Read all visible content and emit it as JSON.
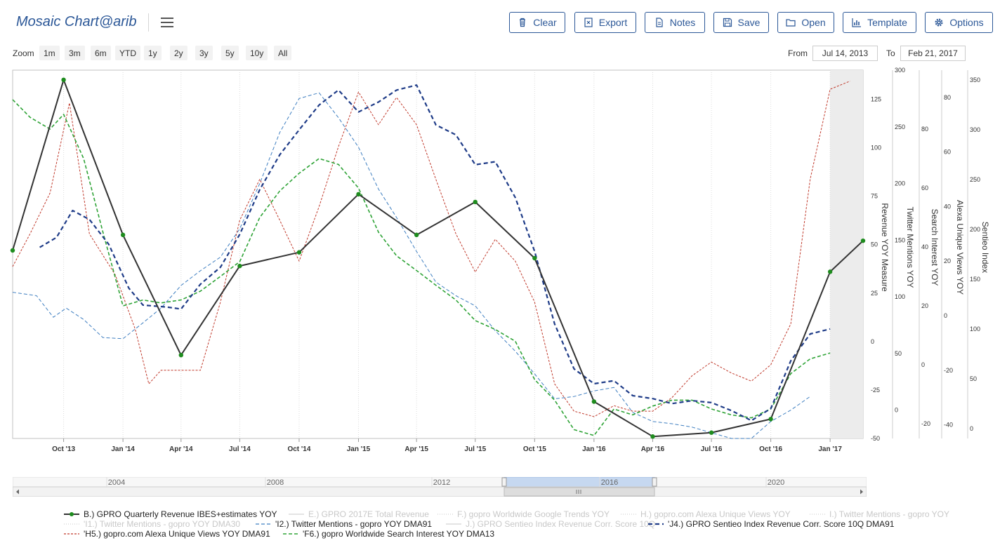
{
  "app": {
    "title": "Mosaic Chart@arib"
  },
  "toolbar": [
    {
      "label": "Clear",
      "icon": "trash-icon"
    },
    {
      "label": "Export",
      "icon": "export-icon"
    },
    {
      "label": "Notes",
      "icon": "notes-icon"
    },
    {
      "label": "Save",
      "icon": "save-icon"
    },
    {
      "label": "Open",
      "icon": "folder-icon"
    },
    {
      "label": "Template",
      "icon": "bar-chart-icon"
    },
    {
      "label": "Options",
      "icon": "gear-icon"
    }
  ],
  "zoom": {
    "label": "Zoom",
    "buttons": [
      "1m",
      "3m",
      "6m",
      "YTD",
      "1y",
      "2y",
      "3y",
      "5y",
      "10y",
      "All"
    ]
  },
  "range": {
    "from_label": "From",
    "from_value": "Jul 14, 2013",
    "to_label": "To",
    "to_value": "Feb 21, 2017"
  },
  "colors": {
    "accent": "#2b5797",
    "black_series": "#333333",
    "navy_series": "#1f3c88",
    "blue_series": "#3f7fc1",
    "red_series": "#c0392b",
    "green_series": "#2ea336",
    "marker": "#1e8c1e"
  },
  "chart_data": {
    "type": "line",
    "x_range": [
      "2013-07-14",
      "2017-02-21"
    ],
    "x_ticks": [
      "Oct '13",
      "Jan '14",
      "Apr '14",
      "Jul '14",
      "Oct '14",
      "Jan '15",
      "Apr '15",
      "Jul '15",
      "Oct '15",
      "Jan '16",
      "Apr '16",
      "Jul '16",
      "Oct '16",
      "Jan '17"
    ],
    "grid": true,
    "axes": [
      {
        "label": "Revenue YOY Measure",
        "ylim": [
          -50,
          140
        ],
        "ticks": [
          125,
          100,
          75,
          50,
          25,
          0,
          -25,
          -50
        ]
      },
      {
        "label": "Twitter Mentions YOY",
        "ylim": [
          -25,
          300
        ],
        "ticks": [
          300,
          250,
          200,
          150,
          100,
          50,
          0
        ]
      },
      {
        "label": "Search Interest YOY",
        "ylim": [
          -25,
          100
        ],
        "ticks": [
          80,
          60,
          40,
          20,
          0,
          -20
        ]
      },
      {
        "label": "Alexa Unique Views YOY",
        "ylim": [
          -45,
          90
        ],
        "ticks": [
          80,
          60,
          40,
          20,
          0,
          -20,
          -40
        ]
      },
      {
        "label": "Sentieo Index",
        "ylim": [
          -10,
          360
        ],
        "ticks": [
          350,
          300,
          250,
          200,
          150,
          100,
          50,
          0
        ]
      }
    ],
    "series": [
      {
        "name": "B.) GPRO Quarterly Revenue IBES+estimates YOY",
        "axis": 0,
        "style": "solid-markers",
        "points": [
          [
            "2013-07-14",
            47
          ],
          [
            "2013-10-01",
            135
          ],
          [
            "2014-01-01",
            55
          ],
          [
            "2014-04-01",
            -7
          ],
          [
            "2014-07-01",
            39
          ],
          [
            "2014-10-01",
            46
          ],
          [
            "2015-01-01",
            76
          ],
          [
            "2015-04-01",
            55
          ],
          [
            "2015-07-01",
            72
          ],
          [
            "2015-10-01",
            43
          ],
          [
            "2016-01-01",
            -31
          ],
          [
            "2016-04-01",
            -49
          ],
          [
            "2016-07-01",
            -47
          ],
          [
            "2016-10-01",
            -40
          ],
          [
            "2017-01-01",
            36
          ],
          [
            "2017-02-21",
            52
          ]
        ]
      },
      {
        "name": "'J4.) GPRO Sentieo Index Revenue Corr. Score 10Q DMA91",
        "axis": 4,
        "style": "dash-heavy",
        "points": [
          [
            "2013-08-25",
            182
          ],
          [
            "2013-09-20",
            192
          ],
          [
            "2013-10-15",
            219
          ],
          [
            "2013-11-10",
            210
          ],
          [
            "2013-12-10",
            185
          ],
          [
            "2014-01-10",
            141
          ],
          [
            "2014-02-01",
            124
          ],
          [
            "2014-03-10",
            122
          ],
          [
            "2014-04-01",
            120
          ],
          [
            "2014-05-01",
            145
          ],
          [
            "2014-06-01",
            162
          ],
          [
            "2014-07-01",
            195
          ],
          [
            "2014-08-01",
            240
          ],
          [
            "2014-09-01",
            275
          ],
          [
            "2014-10-01",
            300
          ],
          [
            "2014-11-01",
            325
          ],
          [
            "2014-12-01",
            340
          ],
          [
            "2015-01-01",
            318
          ],
          [
            "2015-02-01",
            328
          ],
          [
            "2015-03-01",
            340
          ],
          [
            "2015-04-01",
            345
          ],
          [
            "2015-05-01",
            305
          ],
          [
            "2015-06-01",
            295
          ],
          [
            "2015-07-01",
            265
          ],
          [
            "2015-08-01",
            268
          ],
          [
            "2015-09-01",
            232
          ],
          [
            "2015-10-01",
            178
          ],
          [
            "2015-11-01",
            105
          ],
          [
            "2015-12-01",
            60
          ],
          [
            "2016-01-01",
            45
          ],
          [
            "2016-02-01",
            48
          ],
          [
            "2016-03-01",
            33
          ],
          [
            "2016-04-01",
            30
          ],
          [
            "2016-05-01",
            25
          ],
          [
            "2016-06-01",
            28
          ],
          [
            "2016-07-01",
            26
          ],
          [
            "2016-08-01",
            18
          ],
          [
            "2016-09-01",
            8
          ],
          [
            "2016-10-01",
            20
          ],
          [
            "2016-11-01",
            68
          ],
          [
            "2016-12-01",
            95
          ],
          [
            "2017-01-01",
            100
          ]
        ]
      },
      {
        "name": "'I2.) Twitter Mentions - gopro YOY DMA91",
        "axis": 1,
        "style": "dash-light",
        "points": [
          [
            "2013-07-14",
            104
          ],
          [
            "2013-08-20",
            101
          ],
          [
            "2013-09-15",
            82
          ],
          [
            "2013-10-05",
            90
          ],
          [
            "2013-11-01",
            80
          ],
          [
            "2013-12-01",
            64
          ],
          [
            "2014-01-01",
            63
          ],
          [
            "2014-02-01",
            77
          ],
          [
            "2014-03-01",
            90
          ],
          [
            "2014-04-01",
            110
          ],
          [
            "2014-05-01",
            123
          ],
          [
            "2014-06-01",
            135
          ],
          [
            "2014-07-01",
            160
          ],
          [
            "2014-08-01",
            200
          ],
          [
            "2014-09-01",
            245
          ],
          [
            "2014-10-01",
            275
          ],
          [
            "2014-11-01",
            280
          ],
          [
            "2014-12-01",
            258
          ],
          [
            "2015-01-01",
            232
          ],
          [
            "2015-02-01",
            195
          ],
          [
            "2015-03-01",
            170
          ],
          [
            "2015-04-01",
            140
          ],
          [
            "2015-05-01",
            113
          ],
          [
            "2015-06-01",
            101
          ],
          [
            "2015-07-01",
            92
          ],
          [
            "2015-08-01",
            70
          ],
          [
            "2015-09-01",
            52
          ],
          [
            "2015-10-01",
            32
          ],
          [
            "2015-11-01",
            10
          ],
          [
            "2015-12-01",
            12
          ],
          [
            "2016-01-01",
            17
          ],
          [
            "2016-02-01",
            20
          ],
          [
            "2016-03-01",
            -2
          ],
          [
            "2016-04-01",
            -10
          ],
          [
            "2016-05-01",
            -12
          ],
          [
            "2016-06-01",
            -15
          ],
          [
            "2016-07-01",
            -20
          ],
          [
            "2016-08-01",
            -25
          ],
          [
            "2016-09-01",
            -25
          ],
          [
            "2016-10-01",
            -10
          ],
          [
            "2016-11-01",
            0
          ],
          [
            "2016-12-01",
            12
          ]
        ]
      },
      {
        "name": "'H5.) gopro.com Alexa Unique Views YOY DMA91",
        "axis": 3,
        "style": "dash-fine",
        "points": [
          [
            "2013-07-14",
            18
          ],
          [
            "2013-08-10",
            30
          ],
          [
            "2013-09-10",
            45
          ],
          [
            "2013-10-10",
            78
          ],
          [
            "2013-11-10",
            30
          ],
          [
            "2013-12-20",
            15
          ],
          [
            "2014-01-20",
            -5
          ],
          [
            "2014-02-10",
            -25
          ],
          [
            "2014-03-01",
            -20
          ],
          [
            "2014-04-01",
            -20
          ],
          [
            "2014-05-01",
            -20
          ],
          [
            "2014-06-01",
            5
          ],
          [
            "2014-07-01",
            35
          ],
          [
            "2014-08-01",
            50
          ],
          [
            "2014-09-01",
            35
          ],
          [
            "2014-10-01",
            20
          ],
          [
            "2014-11-01",
            40
          ],
          [
            "2014-12-01",
            62
          ],
          [
            "2015-01-01",
            82
          ],
          [
            "2015-02-01",
            70
          ],
          [
            "2015-03-01",
            80
          ],
          [
            "2015-04-01",
            70
          ],
          [
            "2015-05-01",
            50
          ],
          [
            "2015-06-01",
            30
          ],
          [
            "2015-07-01",
            16
          ],
          [
            "2015-08-01",
            28
          ],
          [
            "2015-09-01",
            20
          ],
          [
            "2015-10-01",
            5
          ],
          [
            "2015-11-01",
            -25
          ],
          [
            "2015-12-01",
            -35
          ],
          [
            "2016-01-01",
            -37
          ],
          [
            "2016-02-01",
            -33
          ],
          [
            "2016-03-01",
            -35
          ],
          [
            "2016-04-01",
            -35
          ],
          [
            "2016-05-01",
            -30
          ],
          [
            "2016-06-01",
            -22
          ],
          [
            "2016-07-01",
            -17
          ],
          [
            "2016-08-01",
            -21
          ],
          [
            "2016-09-01",
            -24
          ],
          [
            "2016-10-01",
            -18
          ],
          [
            "2016-11-01",
            -3
          ],
          [
            "2016-12-01",
            50
          ],
          [
            "2017-01-01",
            83
          ],
          [
            "2017-02-01",
            86
          ]
        ]
      },
      {
        "name": "'F6.) gopro Worldwide Search Interest YOY DMA13",
        "axis": 2,
        "style": "dash-medium",
        "points": [
          [
            "2013-07-14",
            90
          ],
          [
            "2013-08-10",
            84
          ],
          [
            "2013-09-10",
            80
          ],
          [
            "2013-10-01",
            85
          ],
          [
            "2013-11-01",
            70
          ],
          [
            "2013-12-01",
            45
          ],
          [
            "2014-01-01",
            20
          ],
          [
            "2014-02-01",
            22
          ],
          [
            "2014-03-01",
            21
          ],
          [
            "2014-04-01",
            22
          ],
          [
            "2014-05-01",
            25
          ],
          [
            "2014-06-01",
            30
          ],
          [
            "2014-07-01",
            35
          ],
          [
            "2014-08-01",
            50
          ],
          [
            "2014-09-01",
            59
          ],
          [
            "2014-10-01",
            65
          ],
          [
            "2014-11-01",
            70
          ],
          [
            "2014-12-01",
            68
          ],
          [
            "2015-01-01",
            60
          ],
          [
            "2015-02-01",
            45
          ],
          [
            "2015-03-01",
            37
          ],
          [
            "2015-04-01",
            32
          ],
          [
            "2015-05-01",
            27
          ],
          [
            "2015-06-01",
            22
          ],
          [
            "2015-07-01",
            15
          ],
          [
            "2015-08-01",
            12
          ],
          [
            "2015-09-01",
            8
          ],
          [
            "2015-10-01",
            -5
          ],
          [
            "2015-11-01",
            -12
          ],
          [
            "2015-12-01",
            -22
          ],
          [
            "2016-01-01",
            -24
          ],
          [
            "2016-02-01",
            -15
          ],
          [
            "2016-03-01",
            -17
          ],
          [
            "2016-04-01",
            -14
          ],
          [
            "2016-05-01",
            -12
          ],
          [
            "2016-06-01",
            -12
          ],
          [
            "2016-07-01",
            -15
          ],
          [
            "2016-08-01",
            -17
          ],
          [
            "2016-09-01",
            -18
          ],
          [
            "2016-10-01",
            -15
          ],
          [
            "2016-11-01",
            -3
          ],
          [
            "2016-12-01",
            2
          ],
          [
            "2017-01-01",
            4
          ]
        ]
      }
    ]
  },
  "navigator": {
    "ticks": [
      "2004",
      "2008",
      "2012",
      "2016",
      "2020"
    ]
  },
  "legend": [
    {
      "name": "B.) GPRO Quarterly Revenue IBES+estimates YOY",
      "style": "solid-markers",
      "active": true
    },
    {
      "name": "E.) GPRO 2017E Total Revenue",
      "style": "solid-light",
      "active": false
    },
    {
      "name": "F.) gopro Worldwide Google Trends YOY",
      "style": "dotted",
      "active": false
    },
    {
      "name": "H.) gopro.com Alexa Unique Views YOY",
      "style": "dotted",
      "active": false
    },
    {
      "name": "I.) Twitter Mentions - gopro YOY",
      "style": "dotted",
      "active": false
    },
    {
      "name": "'I1.) Twitter Mentions - gopro YOY DMA30",
      "style": "dotted",
      "active": false
    },
    {
      "name": "'I2.) Twitter Mentions - gopro YOY DMA91",
      "style": "dash-light",
      "active": true
    },
    {
      "name": "J.) GPRO Sentieo Index Revenue Corr. Score 10Q",
      "style": "solid-light",
      "active": false
    },
    {
      "name": "'J4.) GPRO Sentieo Index Revenue Corr. Score 10Q DMA91",
      "style": "dash-heavy",
      "active": true
    },
    {
      "name": "'H5.) gopro.com Alexa Unique Views YOY DMA91",
      "style": "dash-fine",
      "active": true
    },
    {
      "name": "'F6.) gopro Worldwide Search Interest YOY DMA13",
      "style": "dash-medium",
      "active": true
    }
  ]
}
